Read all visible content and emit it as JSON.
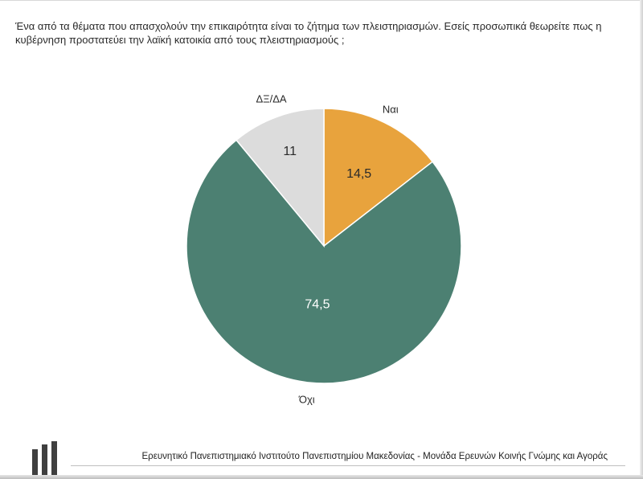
{
  "question": "Ένα από τα θέματα που απασχολούν την επικαιρότητα είναι το ζήτημα των πλειστηριασμών. Εσείς προσωπικά θεωρείτε πως η κυβέρνηση προστατεύει την λαϊκή κατοικία από τους πλειστηριασμούς ;",
  "footer": {
    "institution": "Ερευνητικό Πανεπιστημιακό Ινστιτούτο Πανεπιστημίου Μακεδονίας - Μονάδα Ερευνών Κοινής Γνώμης και Αγοράς"
  },
  "chart_data": {
    "type": "pie",
    "title": "",
    "slices": [
      {
        "label": "Ναι",
        "value": 14.5,
        "value_label": "14,5",
        "color": "#e8a33d",
        "value_color": "#2a2a2a"
      },
      {
        "label": "Όχι",
        "value": 74.5,
        "value_label": "74,5",
        "color": "#4c8072",
        "value_color": "#ffffff"
      },
      {
        "label": "ΔΞ/ΔΑ",
        "value": 11,
        "value_label": "11",
        "color": "#dcdcdc",
        "value_color": "#2a2a2a"
      }
    ],
    "start": "12 o'clock, clockwise from Ναι"
  }
}
